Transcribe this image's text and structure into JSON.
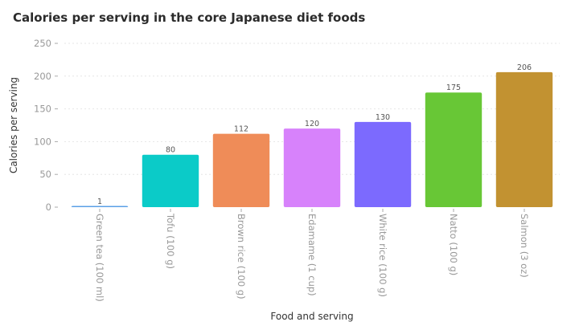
{
  "chart_data": {
    "type": "bar",
    "title": "Calories per serving in the core Japanese diet foods",
    "xlabel": "Food and serving",
    "ylabel": "Calories per serving",
    "categories": [
      "Green tea (100 ml)",
      "Tofu (100 g)",
      "Brown rice (100 g)",
      "Edamame (1 cup)",
      "White rice (100 g)",
      "Natto (100 g)",
      "Salmon (3 oz)"
    ],
    "values": [
      1,
      80,
      112,
      120,
      130,
      175,
      206
    ],
    "data_labels": [
      "1",
      "80",
      "112",
      "120",
      "130",
      "175",
      "206"
    ],
    "colors": [
      "#5aa0e6",
      "#0bcbc8",
      "#ef8c58",
      "#d782fb",
      "#7c6afe",
      "#68c736",
      "#c29231"
    ],
    "ylim": [
      0,
      250
    ],
    "yticks": [
      0,
      50,
      100,
      150,
      200,
      250
    ],
    "ytick_labels": [
      "0",
      "50",
      "100",
      "150",
      "200",
      "250"
    ],
    "grid": true,
    "legend": "none"
  }
}
